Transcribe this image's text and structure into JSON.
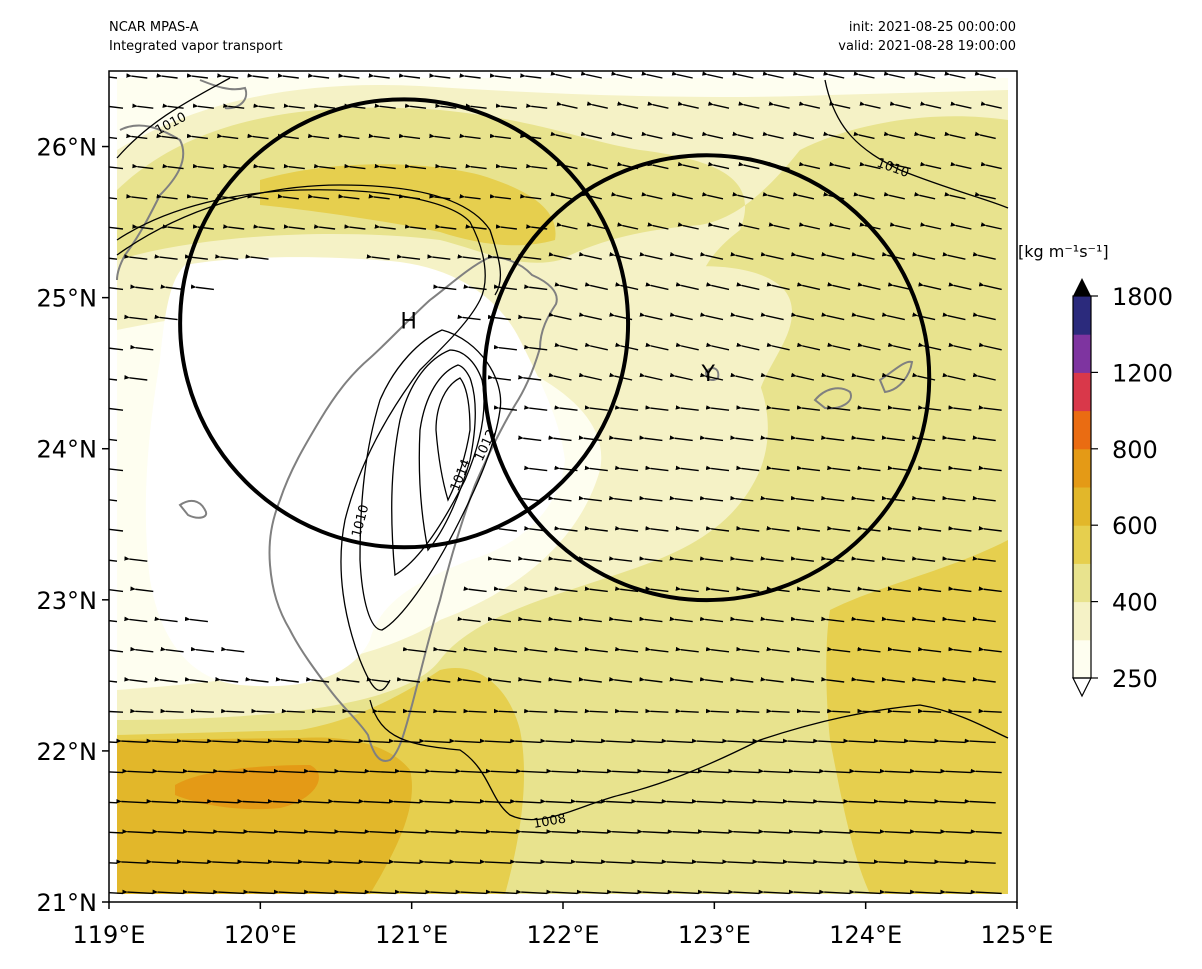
{
  "header": {
    "left_line1": "NCAR MPAS-A",
    "left_line2": "Integrated vapor transport",
    "right_line1": "init: 2021-08-25 00:00:00",
    "right_line2": "valid: 2021-08-28 19:00:00"
  },
  "map": {
    "lon_range": [
      119,
      125
    ],
    "lat_range": [
      21,
      26.5
    ],
    "x_ticks": [
      "119°E",
      "120°E",
      "121°E",
      "122°E",
      "123°E",
      "124°E",
      "125°E"
    ],
    "y_ticks": [
      "21°N",
      "22°N",
      "23°N",
      "24°N",
      "25°N",
      "26°N"
    ],
    "markers": [
      {
        "label": "H",
        "lon": 120.98,
        "lat": 24.85
      },
      {
        "label": "Y",
        "lon": 122.96,
        "lat": 24.5
      }
    ],
    "circles": [
      {
        "name": "circle-h",
        "center_lon": 120.95,
        "center_lat": 24.83,
        "radius_deg": 1.48
      },
      {
        "name": "circle-y",
        "center_lon": 122.95,
        "center_lat": 24.47,
        "radius_deg": 1.47
      }
    ],
    "contour_labels": [
      "1010",
      "1010",
      "1008",
      "1010",
      "1012",
      "1014"
    ],
    "vector_direction": "westward"
  },
  "colorbar": {
    "unit_label": "[kg m⁻¹s⁻¹]",
    "tick_labels": [
      "250",
      "400",
      "600",
      "800",
      "1200",
      "1800"
    ],
    "colors": [
      "#fefef0",
      "#f5f2c6",
      "#e8e38e",
      "#e6cf4e",
      "#e2b72a",
      "#e49a16",
      "#ea6c12",
      "#d9384a",
      "#7e34a0",
      "#2b2a7c"
    ],
    "extend": "both"
  },
  "colors": {
    "land_outline": "#808080",
    "contour": "#000000",
    "arrow": "#000000"
  }
}
